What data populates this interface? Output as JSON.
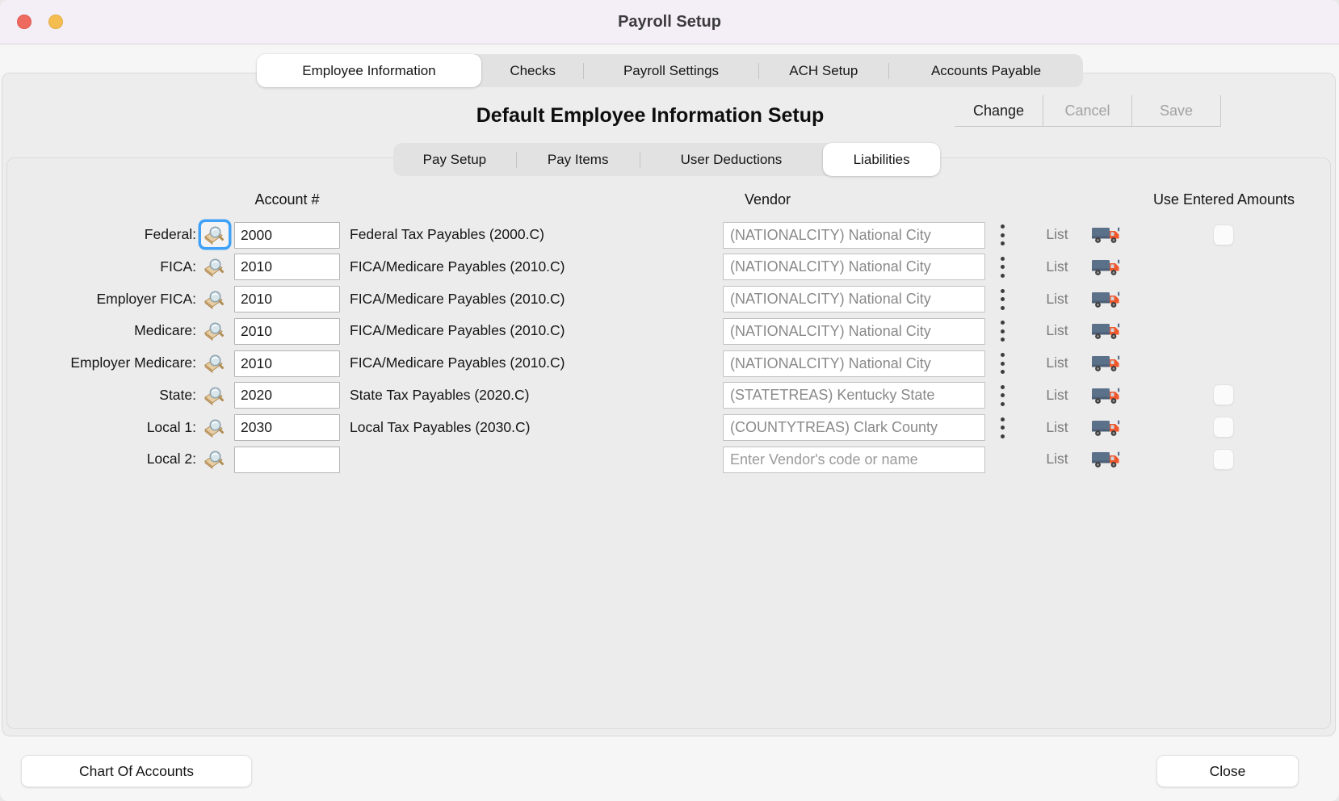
{
  "window": {
    "title": "Payroll Setup"
  },
  "titlebar_controls": {
    "close": "close-button",
    "minimize": "minimize-button"
  },
  "main_tabs": {
    "items": [
      "Employee Information",
      "Checks",
      "Payroll Settings",
      "ACH Setup",
      "Accounts Payable"
    ],
    "selected": "Employee Information"
  },
  "header": {
    "title": "Default Employee Information Setup",
    "buttons": [
      {
        "label": "Change",
        "enabled": true
      },
      {
        "label": "Cancel",
        "enabled": false
      },
      {
        "label": "Save",
        "enabled": false
      }
    ]
  },
  "sub_tabs": {
    "items": [
      "Pay Setup",
      "Pay Items",
      "User Deductions",
      "Liabilities"
    ],
    "selected": "Liabilities"
  },
  "table": {
    "columns": {
      "account": "Account #",
      "vendor": "Vendor",
      "use_entered": "Use Entered Amounts"
    },
    "list_label": "List",
    "vendor_placeholder": "Enter Vendor's code or name",
    "icons": {
      "lookup": "book-magnifier-icon",
      "menu": "kebab-menu-icon",
      "vendor_file": "delivery-truck-icon"
    },
    "rows": [
      {
        "label": "Federal:",
        "account": "2000",
        "description": "Federal Tax Payables (2000.C)",
        "vendor": "(NATIONALCITY) National City",
        "has_menu": true,
        "has_checkbox": true,
        "focused": true
      },
      {
        "label": "FICA:",
        "account": "2010",
        "description": "FICA/Medicare Payables (2010.C)",
        "vendor": "(NATIONALCITY) National City",
        "has_menu": true,
        "has_checkbox": false,
        "focused": false
      },
      {
        "label": "Employer FICA:",
        "account": "2010",
        "description": "FICA/Medicare Payables (2010.C)",
        "vendor": "(NATIONALCITY) National City",
        "has_menu": true,
        "has_checkbox": false,
        "focused": false
      },
      {
        "label": "Medicare:",
        "account": "2010",
        "description": "FICA/Medicare Payables (2010.C)",
        "vendor": "(NATIONALCITY) National City",
        "has_menu": true,
        "has_checkbox": false,
        "focused": false
      },
      {
        "label": "Employer Medicare:",
        "account": "2010",
        "description": "FICA/Medicare Payables (2010.C)",
        "vendor": "(NATIONALCITY) National City",
        "has_menu": true,
        "has_checkbox": false,
        "focused": false
      },
      {
        "label": "State:",
        "account": "2020",
        "description": "State Tax Payables (2020.C)",
        "vendor": "(STATETREAS) Kentucky State",
        "has_menu": true,
        "has_checkbox": true,
        "focused": false
      },
      {
        "label": "Local 1:",
        "account": "2030",
        "description": "Local Tax Payables (2030.C)",
        "vendor": "(COUNTYTREAS) Clark County",
        "has_menu": true,
        "has_checkbox": true,
        "focused": false
      },
      {
        "label": "Local 2:",
        "account": "",
        "description": "",
        "vendor": null,
        "has_menu": false,
        "has_checkbox": true,
        "focused": false
      }
    ]
  },
  "footer": {
    "chart_button": "Chart Of Accounts",
    "close_button": "Close"
  },
  "colors": {
    "titlebar_bg": "#f4eef7",
    "window_bg": "#f7f6f7",
    "close_button": "#ee6a5f",
    "minimize_button": "#f5bd50",
    "focus_ring": "#3fa2f7",
    "truck_body": "#5b7089",
    "truck_cab": "#f0582c"
  }
}
